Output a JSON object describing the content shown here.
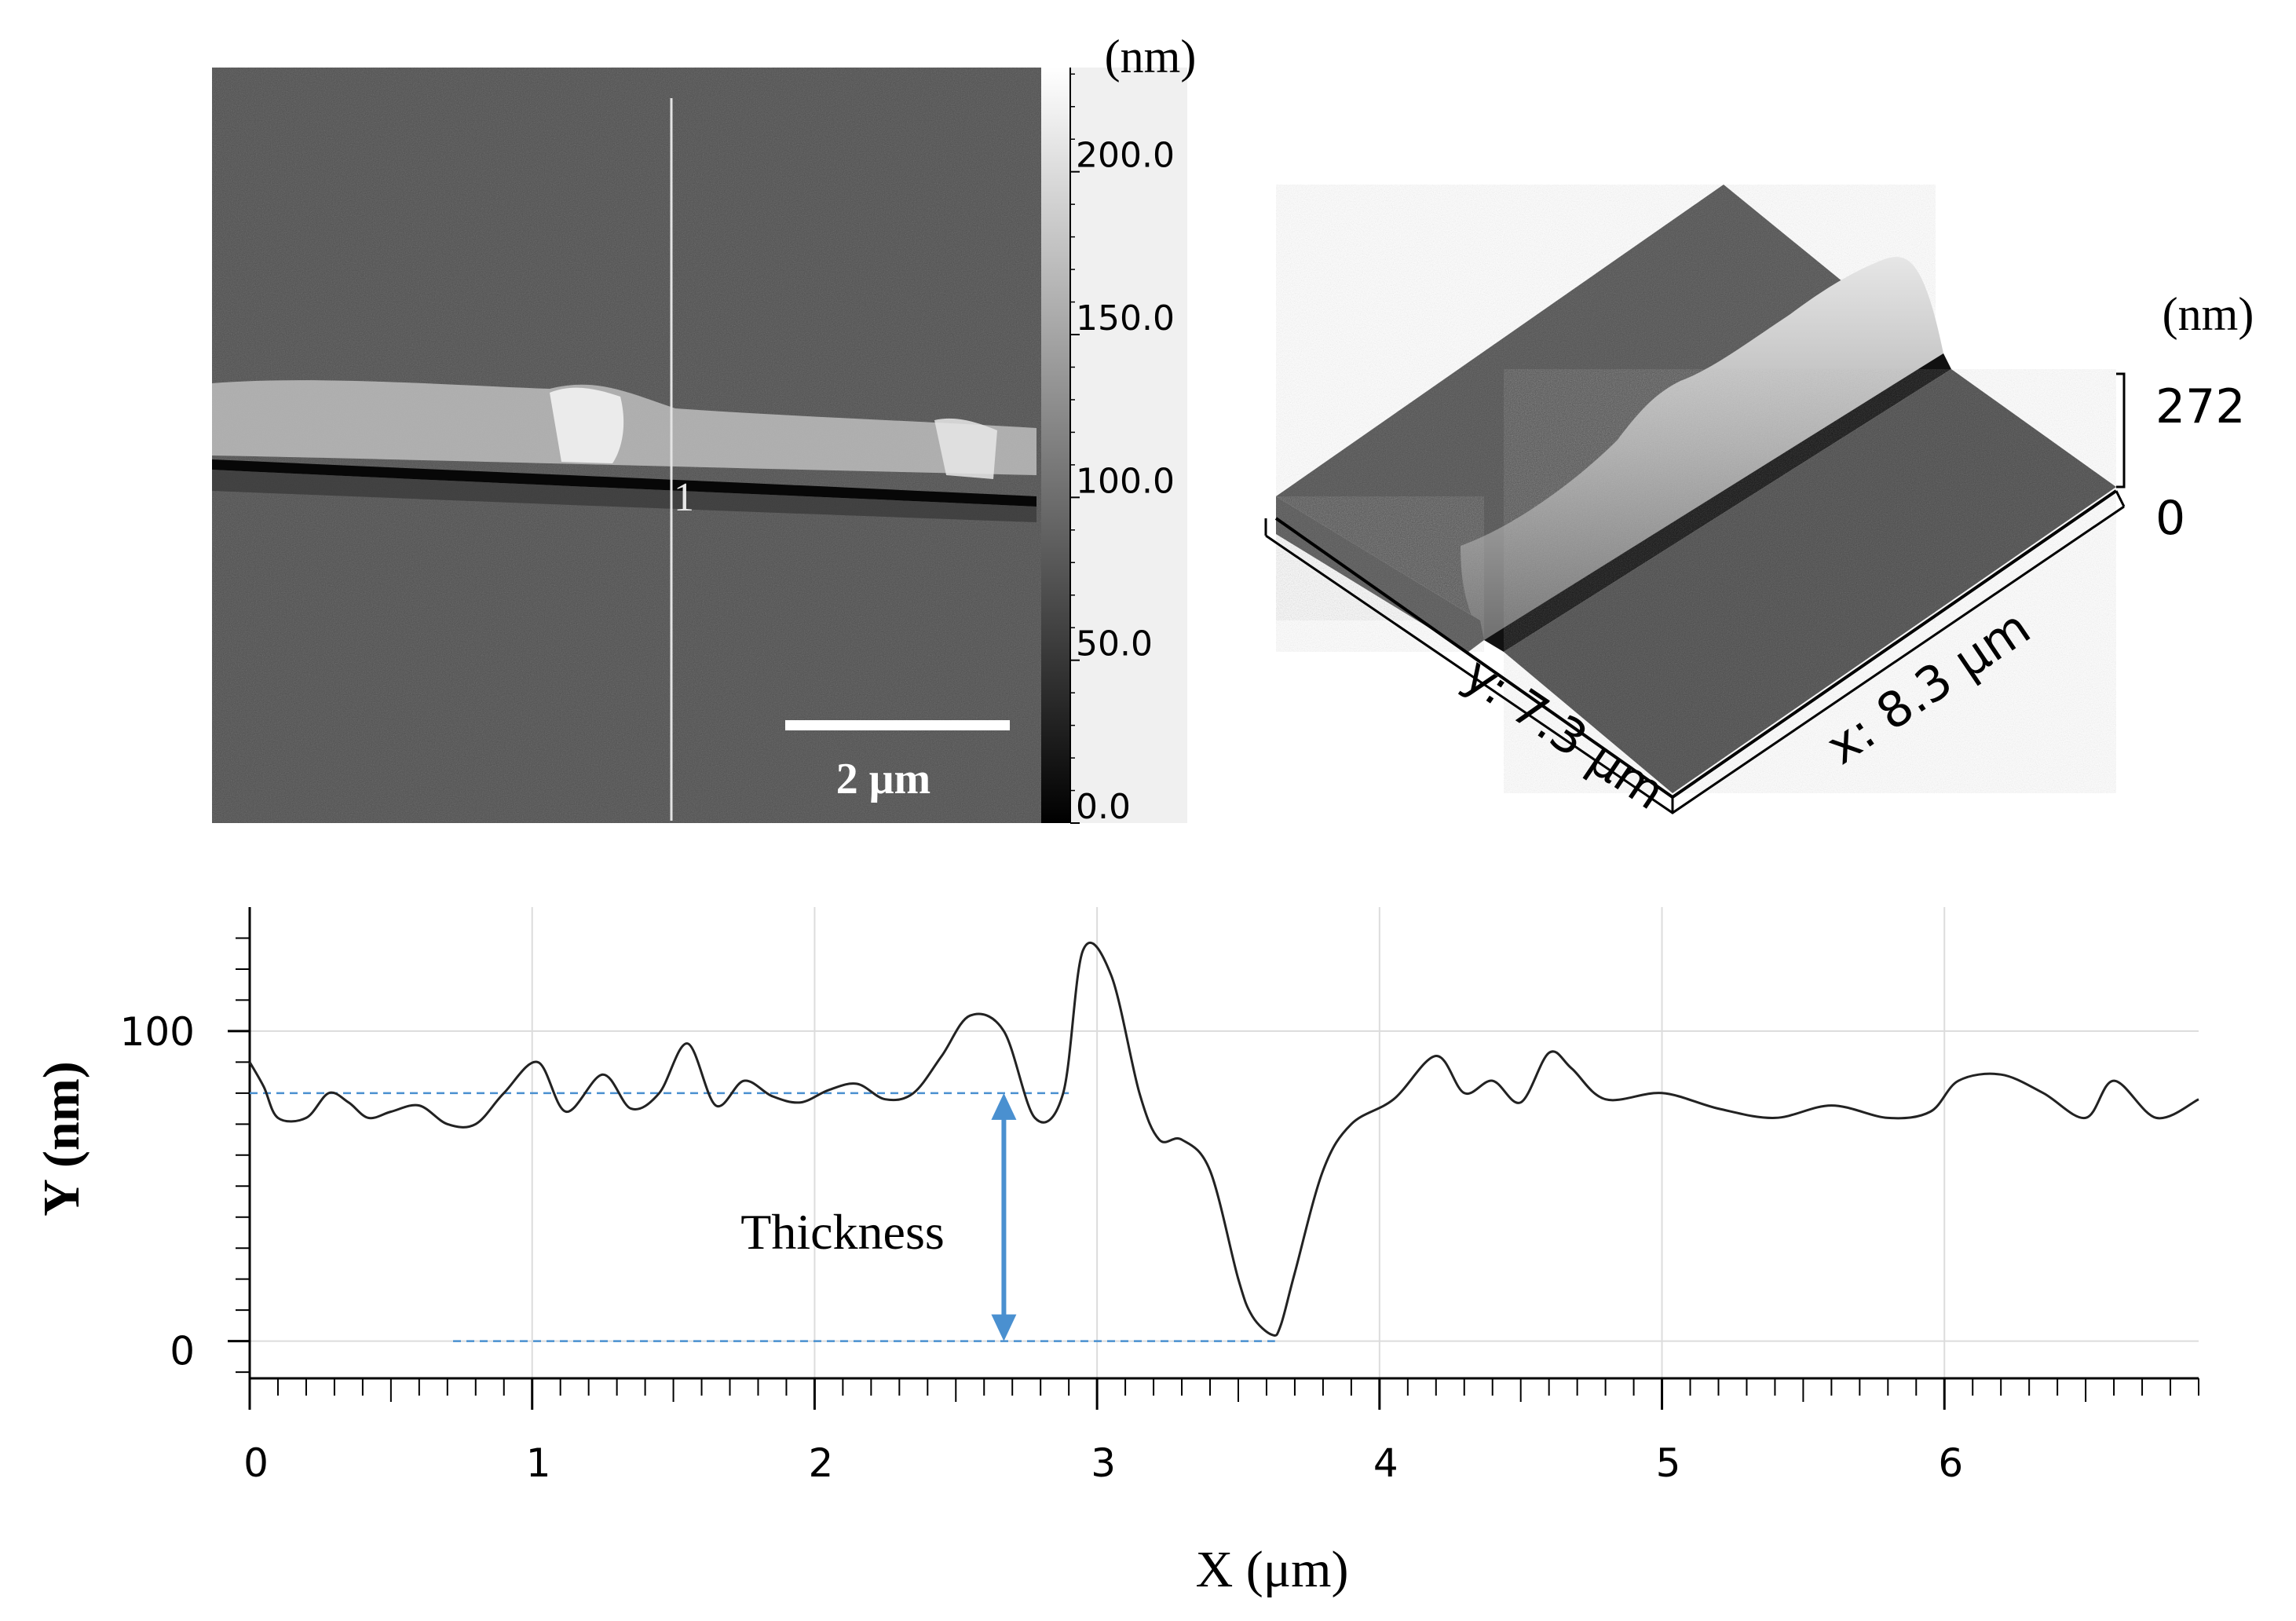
{
  "chart_data": [
    {
      "type": "heatmap",
      "colorbar": {
        "unit": "(nm)",
        "ticks": [
          200.0,
          150.0,
          100.0,
          50.0,
          0.0
        ],
        "tick_labels": [
          "200.0",
          "150.0",
          "100.0",
          "50.0",
          "0.0"
        ],
        "range": [
          0,
          232
        ]
      },
      "scan_line_label": "1",
      "scale_bar_label": "2 μm",
      "colors": {
        "low": "#000000",
        "high": "#ffffff",
        "background_gray": "#4e4e4e"
      }
    },
    {
      "type": "surface",
      "z_unit": "(nm)",
      "z_ticks": [
        "272",
        "0"
      ],
      "y_axis_label": "y: 7.3 μm",
      "x_axis_label": "x: 8.3 μm"
    },
    {
      "type": "line",
      "xlabel": "X (μm)",
      "ylabel": "Y (nm)",
      "xlim": [
        0,
        6.9
      ],
      "ylim": [
        -12,
        140
      ],
      "xticks": [
        0,
        1,
        2,
        3,
        4,
        5,
        6
      ],
      "yticks": [
        0,
        100
      ],
      "grid": true,
      "series": [
        {
          "x": [
            0,
            0.05,
            0.1,
            0.2,
            0.28,
            0.35,
            0.42,
            0.5,
            0.6,
            0.7,
            0.8,
            0.9,
            1.02,
            1.12,
            1.25,
            1.35,
            1.45,
            1.55,
            1.65,
            1.75,
            1.85,
            1.95,
            2.05,
            2.15,
            2.25,
            2.35,
            2.45,
            2.55,
            2.67,
            2.78,
            2.88,
            2.95,
            3.05,
            3.15,
            3.22,
            3.3,
            3.4,
            3.5,
            3.55,
            3.62,
            3.65,
            3.7,
            3.8,
            3.9,
            4.05,
            4.2,
            4.3,
            4.4,
            4.5,
            4.6,
            4.68,
            4.8,
            5.0,
            5.2,
            5.4,
            5.6,
            5.8,
            5.95,
            6.05,
            6.2,
            6.35,
            6.5,
            6.6,
            6.75,
            6.9
          ],
          "y": [
            90,
            82,
            72,
            72,
            80,
            77,
            72,
            74,
            76,
            70,
            70,
            80,
            90,
            74,
            86,
            75,
            80,
            96,
            76,
            84,
            79,
            77,
            81,
            83,
            78,
            80,
            92,
            105,
            100,
            72,
            80,
            126,
            118,
            80,
            65,
            65,
            55,
            20,
            8,
            2,
            5,
            22,
            55,
            70,
            78,
            92,
            80,
            84,
            77,
            93,
            88,
            78,
            80,
            75,
            72,
            76,
            72,
            74,
            84,
            86,
            80,
            72,
            84,
            72,
            78
          ]
        }
      ],
      "annotations": [
        {
          "text": "Thickness",
          "from_y": 80,
          "to_y": 0,
          "x": 2.67,
          "color": "#4a90d0"
        }
      ]
    }
  ]
}
